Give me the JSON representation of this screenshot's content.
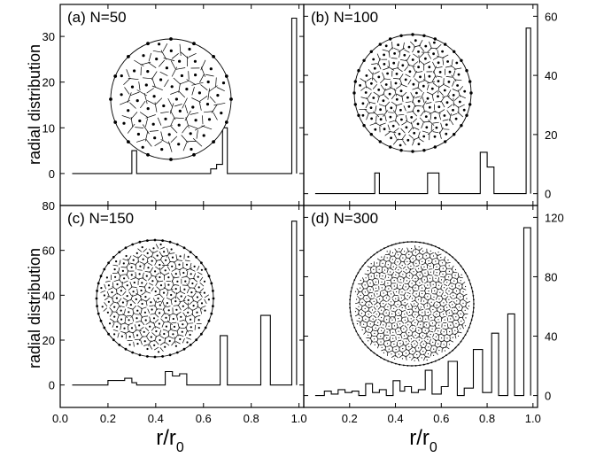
{
  "figure": {
    "ylabel": "radial distribution",
    "xlabel_main": "r/r",
    "xlabel_sub": "0"
  },
  "chart_data": [
    {
      "type": "line",
      "step": true,
      "title": "(a) N=50",
      "ylim": [
        -7,
        37
      ],
      "yticks": [
        0,
        10,
        20,
        30
      ],
      "yticklabels": [
        "0",
        "10",
        "20",
        "30"
      ],
      "ytick_side": "left",
      "xlim": [
        0,
        1.02
      ],
      "xticks": [
        0.2,
        0.4,
        0.6,
        0.8,
        1.0
      ],
      "show_xticklabels": false,
      "x": [
        0.05,
        0.3,
        0.3,
        0.32,
        0.32,
        0.63,
        0.63,
        0.655,
        0.655,
        0.68,
        0.68,
        0.7,
        0.7,
        0.97,
        0.97,
        0.99,
        0.99
      ],
      "y": [
        0,
        0,
        5,
        5,
        0,
        0,
        1,
        1,
        2,
        2,
        10,
        10,
        0,
        0,
        34,
        34,
        0
      ],
      "inset": {
        "n_points": 50
      }
    },
    {
      "type": "line",
      "step": true,
      "title": "(b) N=100",
      "ylim": [
        -4,
        64
      ],
      "yticks": [
        0,
        20,
        40,
        60
      ],
      "yticklabels": [
        "0",
        "20",
        "40",
        "60"
      ],
      "ytick_side": "right",
      "xlim": [
        0,
        1.02
      ],
      "xticks": [
        0.2,
        0.4,
        0.6,
        0.8,
        1.0
      ],
      "show_xticklabels": false,
      "x": [
        0.05,
        0.31,
        0.31,
        0.33,
        0.33,
        0.54,
        0.54,
        0.59,
        0.59,
        0.77,
        0.77,
        0.8,
        0.8,
        0.83,
        0.83,
        0.97,
        0.97,
        0.99,
        0.99
      ],
      "y": [
        0,
        0,
        7,
        7,
        0,
        0,
        7,
        7,
        0,
        0,
        14,
        14,
        9,
        9,
        0,
        0,
        56,
        56,
        0
      ],
      "inset": {
        "n_points": 100
      }
    },
    {
      "type": "line",
      "step": true,
      "title": "(c) N=150",
      "ylim": [
        -10,
        80
      ],
      "yticks": [
        0,
        20,
        40,
        60,
        80
      ],
      "yticklabels": [
        "0",
        "20",
        "40",
        "60",
        "80"
      ],
      "ytick_side": "left",
      "xlim": [
        0,
        1.02
      ],
      "xticks": [
        0.0,
        0.2,
        0.4,
        0.6,
        0.8,
        1.0
      ],
      "xticklabels": [
        "0.0",
        "0.2",
        "0.4",
        "0.6",
        "0.8",
        "1.0"
      ],
      "show_xticklabels": true,
      "x": [
        0.05,
        0.2,
        0.2,
        0.27,
        0.27,
        0.3,
        0.3,
        0.32,
        0.32,
        0.44,
        0.44,
        0.47,
        0.47,
        0.5,
        0.5,
        0.53,
        0.53,
        0.67,
        0.67,
        0.7,
        0.7,
        0.84,
        0.84,
        0.88,
        0.88,
        0.97,
        0.97,
        0.99,
        0.99
      ],
      "y": [
        0,
        0,
        2,
        2,
        3,
        3,
        1,
        1,
        0,
        0,
        6,
        6,
        4,
        4,
        5,
        5,
        0,
        0,
        22,
        22,
        0,
        0,
        31,
        31,
        0,
        0,
        73,
        73,
        0
      ],
      "inset": {
        "n_points": 150
      }
    },
    {
      "type": "line",
      "step": true,
      "title": "(d) N=300",
      "ylim": [
        -8,
        128
      ],
      "yticks": [
        0,
        40,
        80,
        120
      ],
      "yticklabels": [
        "0",
        "40",
        "80",
        "120"
      ],
      "ytick_side": "right",
      "xlim": [
        0,
        1.02
      ],
      "xticks": [
        0.2,
        0.4,
        0.6,
        0.8,
        1.0
      ],
      "xticklabels": [
        "0.2",
        "0.4",
        "0.6",
        "0.8",
        "1.0"
      ],
      "show_xticklabels": true,
      "x": [
        0.05,
        0.09,
        0.09,
        0.12,
        0.12,
        0.15,
        0.15,
        0.18,
        0.18,
        0.21,
        0.21,
        0.24,
        0.24,
        0.27,
        0.27,
        0.3,
        0.3,
        0.33,
        0.33,
        0.36,
        0.36,
        0.39,
        0.39,
        0.42,
        0.42,
        0.44,
        0.44,
        0.47,
        0.47,
        0.5,
        0.5,
        0.53,
        0.53,
        0.56,
        0.56,
        0.6,
        0.6,
        0.63,
        0.63,
        0.67,
        0.67,
        0.7,
        0.7,
        0.74,
        0.74,
        0.78,
        0.78,
        0.82,
        0.82,
        0.85,
        0.85,
        0.89,
        0.89,
        0.92,
        0.92,
        0.96,
        0.96,
        0.99,
        0.99
      ],
      "y": [
        0,
        0,
        3,
        3,
        1,
        1,
        4,
        4,
        2,
        2,
        3,
        3,
        0,
        0,
        8,
        8,
        2,
        2,
        4,
        4,
        0,
        0,
        10,
        10,
        3,
        3,
        6,
        6,
        2,
        2,
        4,
        4,
        17,
        17,
        1,
        1,
        6,
        6,
        23,
        23,
        0,
        0,
        5,
        5,
        31,
        31,
        2,
        2,
        42,
        42,
        0,
        0,
        55,
        55,
        0,
        0,
        113,
        113,
        0
      ],
      "inset": {
        "n_points": 300
      }
    }
  ]
}
